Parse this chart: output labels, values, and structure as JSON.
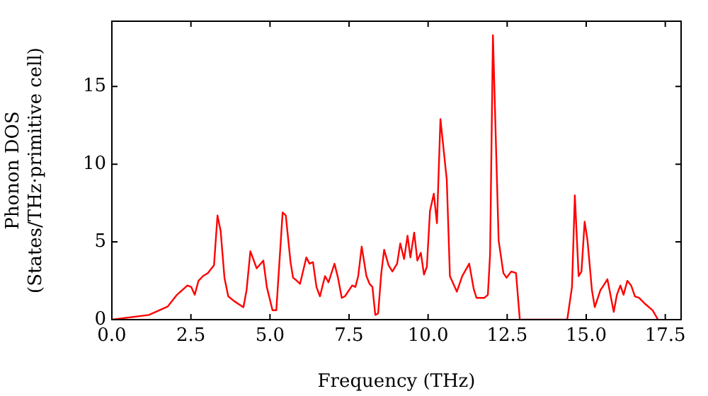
{
  "chart_data": {
    "type": "line",
    "xlabel": "Frequency (THz)",
    "ylabel": "Phonon DOS\n(States/THz·primitive cell)",
    "xlim": [
      0,
      18.0
    ],
    "ylim": [
      0,
      19.2
    ],
    "xticks": [
      {
        "value": 0,
        "label": "0.0"
      },
      {
        "value": 2.5,
        "label": "2.5"
      },
      {
        "value": 5,
        "label": "5.0"
      },
      {
        "value": 7.5,
        "label": "7.5"
      },
      {
        "value": 10,
        "label": "10.0"
      },
      {
        "value": 12.5,
        "label": "12.5"
      },
      {
        "value": 15,
        "label": "15.0"
      },
      {
        "value": 17.5,
        "label": "17.5"
      }
    ],
    "yticks": [
      0,
      5,
      10,
      15
    ],
    "grid": false,
    "legend": false,
    "marker": "none",
    "line_style": "solid",
    "series": [
      {
        "color": "#ff0000",
        "x": [
          0,
          1.17,
          1.77,
          2.06,
          2.39,
          2.51,
          2.62,
          2.74,
          2.88,
          3.04,
          3.23,
          3.34,
          3.44,
          3.56,
          3.68,
          3.86,
          4.16,
          4.26,
          4.38,
          4.58,
          4.79,
          4.9,
          5.08,
          5.2,
          5.4,
          5.5,
          5.65,
          5.73,
          5.85,
          5.95,
          6.15,
          6.25,
          6.36,
          6.47,
          6.58,
          6.74,
          6.85,
          7.04,
          7.15,
          7.27,
          7.37,
          7.6,
          7.7,
          7.79,
          7.9,
          8.05,
          8.15,
          8.24,
          8.33,
          8.42,
          8.52,
          8.61,
          8.75,
          8.87,
          9.02,
          9.12,
          9.24,
          9.35,
          9.44,
          9.56,
          9.66,
          9.77,
          9.87,
          9.96,
          10.06,
          10.18,
          10.28,
          10.39,
          10.59,
          10.69,
          10.91,
          11.08,
          11.3,
          11.44,
          11.53,
          11.78,
          11.89,
          11.96,
          12.05,
          12.23,
          12.38,
          12.48,
          12.63,
          12.78,
          12.9,
          14.4,
          14.55,
          14.64,
          14.76,
          14.85,
          14.95,
          15.04,
          15.18,
          15.27,
          15.45,
          15.55,
          15.67,
          15.87,
          15.97,
          16.08,
          16.18,
          16.3,
          16.42,
          16.54,
          16.67,
          16.87,
          17.1,
          17.27
        ],
        "values": [
          0,
          0.3,
          0.85,
          1.6,
          2.2,
          2.1,
          1.6,
          2.5,
          2.8,
          3.0,
          3.5,
          6.7,
          5.7,
          2.7,
          1.5,
          1.2,
          0.8,
          1.9,
          4.4,
          3.3,
          3.8,
          2.1,
          0.6,
          0.6,
          6.9,
          6.7,
          3.7,
          2.7,
          2.5,
          2.3,
          4.0,
          3.6,
          3.7,
          2.1,
          1.5,
          2.8,
          2.4,
          3.6,
          2.7,
          1.4,
          1.5,
          2.2,
          2.1,
          2.8,
          4.7,
          2.8,
          2.3,
          2.1,
          0.3,
          0.4,
          3.0,
          4.5,
          3.5,
          3.1,
          3.6,
          4.9,
          3.9,
          5.4,
          4.0,
          5.6,
          3.8,
          4.3,
          2.9,
          3.4,
          7.0,
          8.1,
          6.2,
          12.9,
          9.0,
          2.8,
          1.8,
          2.8,
          3.6,
          2.0,
          1.4,
          1.4,
          1.6,
          4.2,
          18.3,
          5.1,
          3.0,
          2.7,
          3.1,
          3.0,
          0,
          0,
          2.1,
          8.0,
          2.8,
          3.1,
          6.3,
          5.1,
          1.9,
          0.8,
          1.9,
          2.2,
          2.6,
          0.5,
          1.6,
          2.2,
          1.6,
          2.5,
          2.2,
          1.5,
          1.4,
          1.0,
          0.6,
          0
        ]
      }
    ]
  }
}
